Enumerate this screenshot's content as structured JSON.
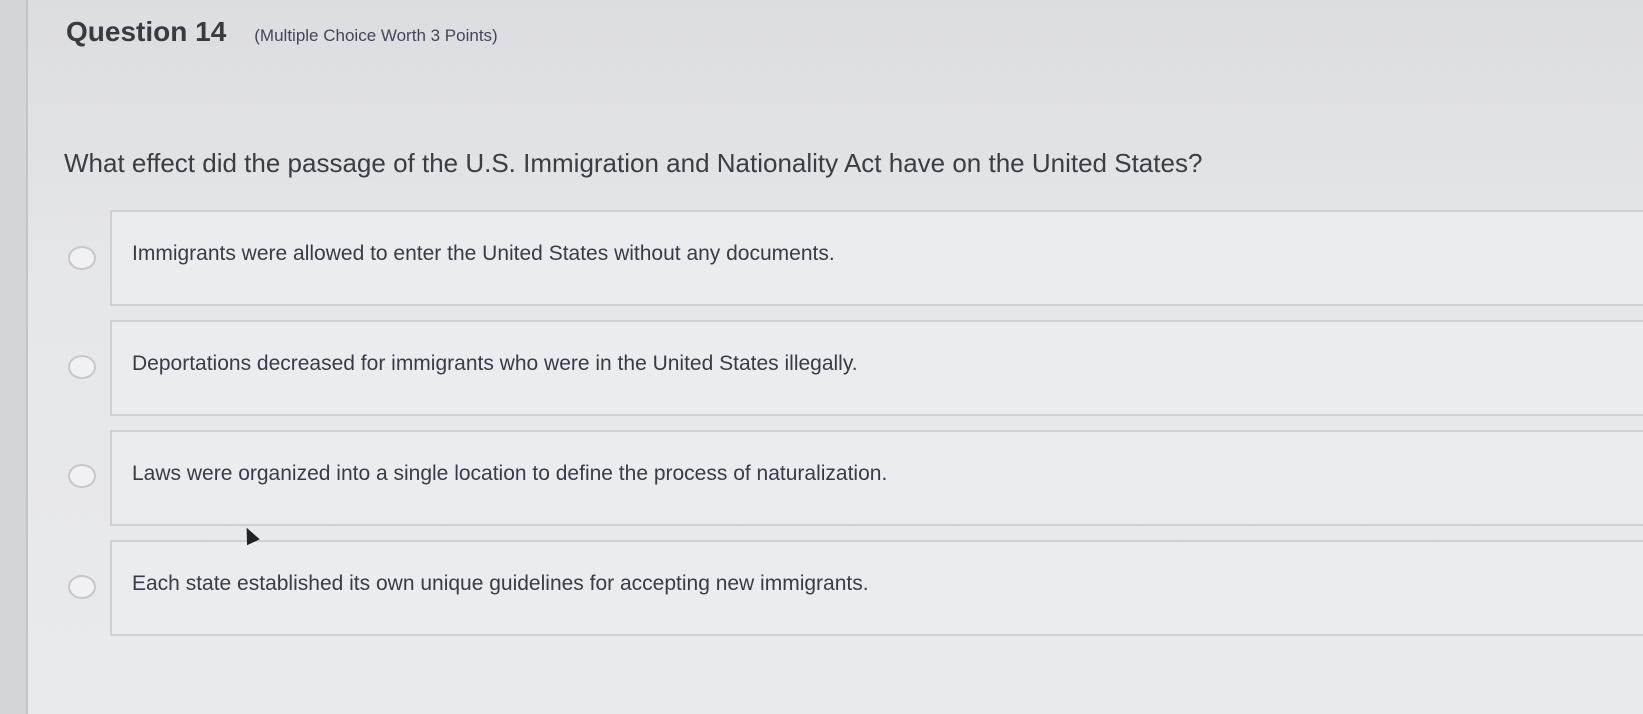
{
  "question": {
    "title": "Question 14",
    "subtitle": "(Multiple Choice Worth 3 Points)",
    "prompt": "What effect did the passage of the U.S. Immigration and Nationality Act have on the United States?"
  },
  "options": [
    {
      "label": "Immigrants were allowed to enter the United States without any documents.",
      "selected": false
    },
    {
      "label": "Deportations decreased for immigrants who were in the United States illegally.",
      "selected": false
    },
    {
      "label": "Laws were organized into a single location to define the process of naturalization.",
      "selected": false
    },
    {
      "label": "Each state established its own unique guidelines for accepting new immigrants.",
      "selected": false
    }
  ]
}
